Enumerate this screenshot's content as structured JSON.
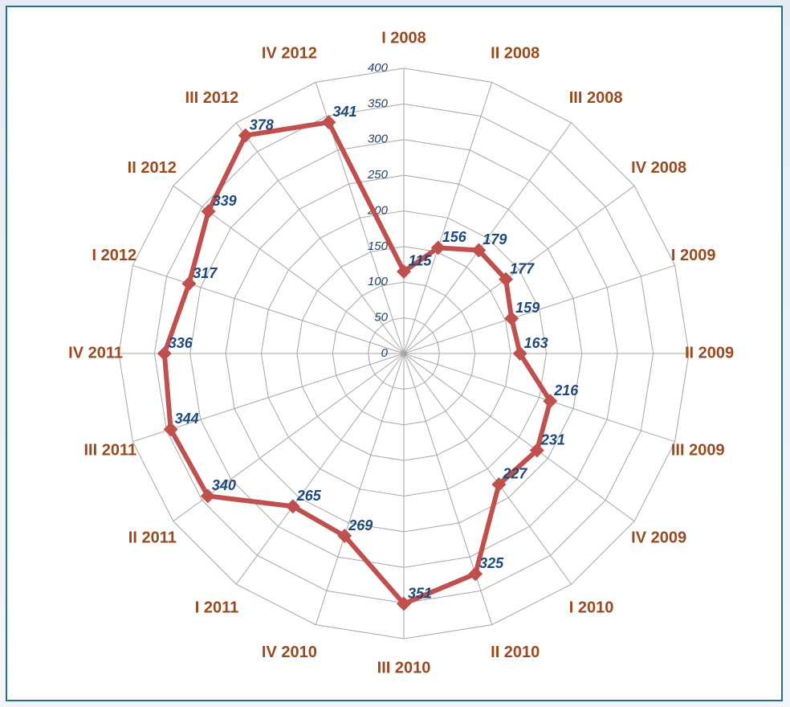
{
  "chart_data": {
    "type": "radar",
    "categories": [
      "I 2008",
      "II 2008",
      "III 2008",
      "IV 2008",
      "I 2009",
      "II 2009",
      "III 2009",
      "IV 2009",
      "I 2010",
      "II 2010",
      "III 2010",
      "IV 2010",
      "I 2011",
      "II 2011",
      "III 2011",
      "IV 2011",
      "I 2012",
      "II 2012",
      "III 2012",
      "IV 2012"
    ],
    "values": [
      115,
      156,
      179,
      177,
      159,
      163,
      216,
      231,
      227,
      325,
      351,
      269,
      265,
      340,
      344,
      336,
      317,
      339,
      378,
      341
    ],
    "color": "#c0504d",
    "ylim": [
      0,
      400
    ],
    "yticks": [
      0,
      50,
      100,
      150,
      200,
      250,
      300,
      350,
      400
    ],
    "grid": true
  }
}
